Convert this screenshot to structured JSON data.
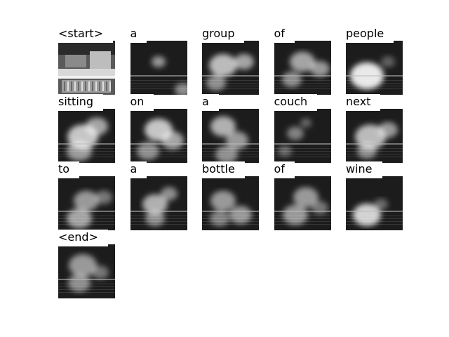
{
  "figure": {
    "words": [
      "<start>",
      "a",
      "group",
      "of",
      "people",
      "sitting",
      "on",
      "a",
      "couch",
      "next",
      "to",
      "a",
      "bottle",
      "of",
      "wine",
      "<end>"
    ],
    "columns": 5
  }
}
